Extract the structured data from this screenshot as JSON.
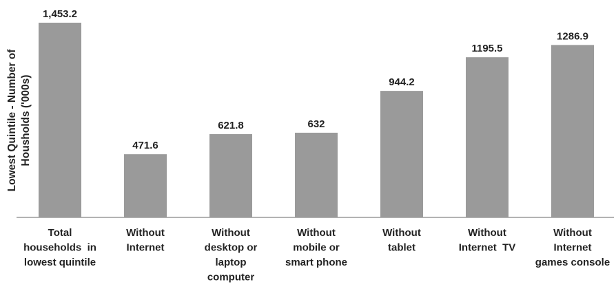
{
  "chart_data": {
    "type": "bar",
    "ylabel_lines": [
      "Lowest Quintile - Number of",
      "Housholds ('000s)"
    ],
    "categories": [
      [
        "Total",
        "households  in",
        "lowest quintile"
      ],
      [
        "Without",
        "Internet"
      ],
      [
        "Without",
        "desktop or",
        "laptop",
        "computer"
      ],
      [
        "Without",
        "mobile or",
        "smart phone"
      ],
      [
        "Without",
        "tablet"
      ],
      [
        "Without",
        "Internet  TV"
      ],
      [
        "Without",
        "Internet",
        "games console"
      ]
    ],
    "values": [
      1453.2,
      471.6,
      621.8,
      632,
      944.2,
      1195.5,
      1286.9
    ],
    "value_labels": [
      "1,453.2",
      "471.6",
      "621.8",
      "632",
      "944.2",
      "1195.5",
      "1286.9"
    ],
    "ylim": [
      0,
      1453.2
    ],
    "grid": false,
    "bar_color": "#9a9a9a"
  }
}
